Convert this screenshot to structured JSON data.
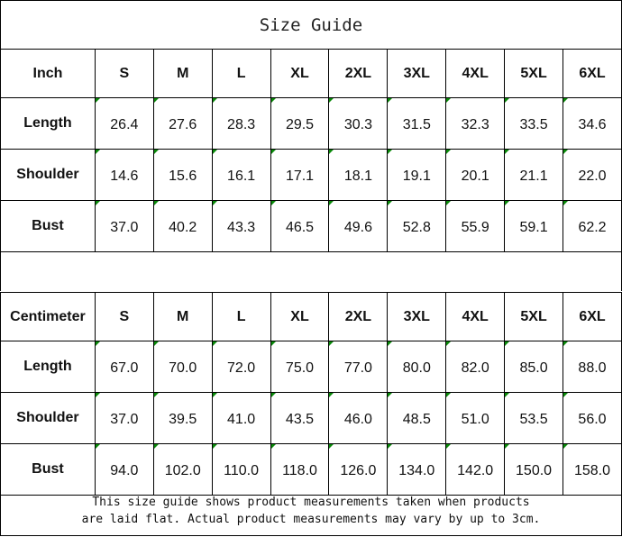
{
  "title": "Size Guide",
  "sizes": [
    "S",
    "M",
    "L",
    "XL",
    "2XL",
    "3XL",
    "4XL",
    "5XL",
    "6XL"
  ],
  "tables": [
    {
      "unit": "Inch",
      "rows": [
        {
          "label": "Length",
          "values": [
            "26.4",
            "27.6",
            "28.3",
            "29.5",
            "30.3",
            "31.5",
            "32.3",
            "33.5",
            "34.6"
          ]
        },
        {
          "label": "Shoulder",
          "values": [
            "14.6",
            "15.6",
            "16.1",
            "17.1",
            "18.1",
            "19.1",
            "20.1",
            "21.1",
            "22.0"
          ]
        },
        {
          "label": "Bust",
          "values": [
            "37.0",
            "40.2",
            "43.3",
            "46.5",
            "49.6",
            "52.8",
            "55.9",
            "59.1",
            "62.2"
          ]
        }
      ]
    },
    {
      "unit": "Centimeter",
      "rows": [
        {
          "label": "Length",
          "values": [
            "67.0",
            "70.0",
            "72.0",
            "75.0",
            "77.0",
            "80.0",
            "82.0",
            "85.0",
            "88.0"
          ]
        },
        {
          "label": "Shoulder",
          "values": [
            "37.0",
            "39.5",
            "41.0",
            "43.5",
            "46.0",
            "48.5",
            "51.0",
            "53.5",
            "56.0"
          ]
        },
        {
          "label": "Bust",
          "values": [
            "94.0",
            "102.0",
            "110.0",
            "118.0",
            "126.0",
            "134.0",
            "142.0",
            "150.0",
            "158.0"
          ]
        }
      ]
    }
  ],
  "footer": {
    "line1": "This size guide shows product measurements taken when products",
    "line2": "are laid flat. Actual product measurements may vary by up to 3cm."
  },
  "colors": {
    "error_indicator": "#0a8a0a"
  }
}
